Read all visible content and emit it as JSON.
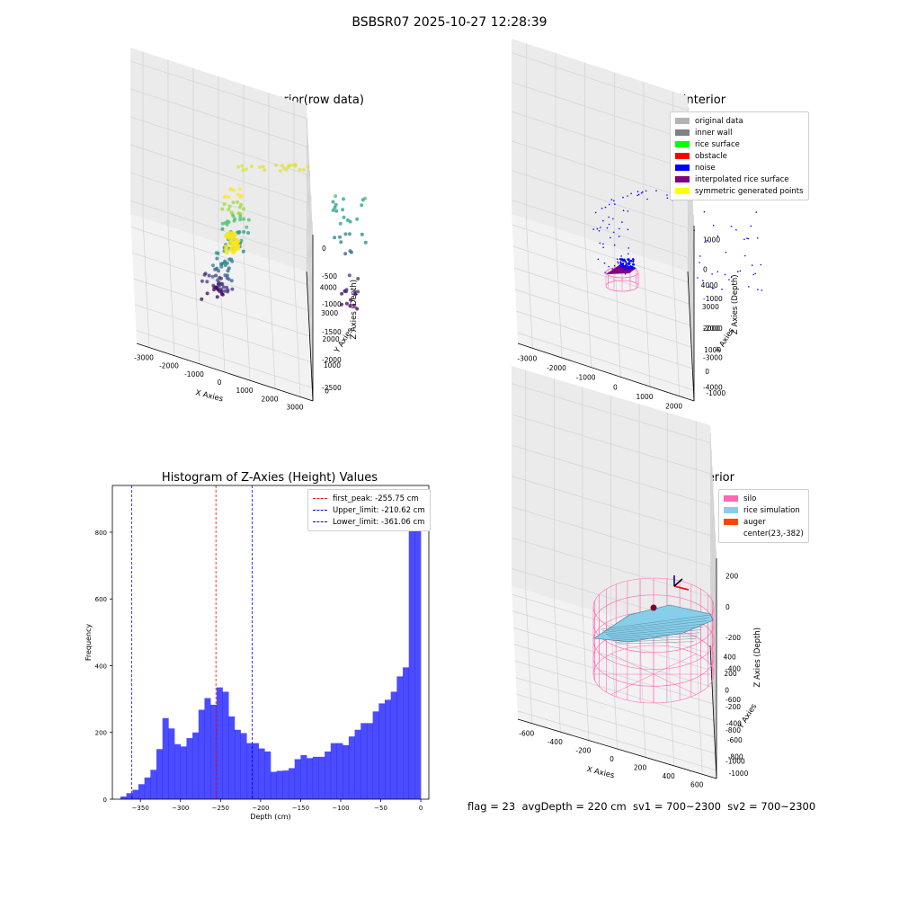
{
  "suptitle": "BSBSR07 2025-10-27 12:28:39",
  "footer_text": "flag = 23  avgDepth = 220 cm  sv1 = 700~2300  sv2 = 700~2300",
  "chart_data": [
    {
      "type": "scatter",
      "title": "3D Plot of Silo Interior(row data)",
      "xlabel": "X Axies",
      "ylabel": "Y Axies",
      "zlabel": "Z Axies (Depth)",
      "x_ticks": [
        "-3000",
        "-2000",
        "-1000",
        "0",
        "1000",
        "2000",
        "3000"
      ],
      "y_ticks": [
        "0",
        "1000",
        "2000",
        "3000",
        "4000"
      ],
      "z_ticks": [
        "0",
        "-500",
        "-1000",
        "-1500",
        "-2000",
        "-2500"
      ],
      "colormap": "viridis",
      "grid": true
    },
    {
      "type": "scatter",
      "title": "3D classify of Silo Interior",
      "xlabel": "X Axies",
      "ylabel": "Y Axies",
      "zlabel": "Z Axies (Depth)",
      "x_ticks": [
        "-3000",
        "-2000",
        "-1000",
        "0",
        "1000",
        "2000"
      ],
      "y_ticks": [
        "-1000",
        "0",
        "1000",
        "2000",
        "3000",
        "4000"
      ],
      "z_ticks": [
        "1000",
        "0",
        "-1000",
        "-2000",
        "-3000",
        "-4000"
      ],
      "legend_position": "top-right",
      "legend": [
        {
          "label": "original data",
          "color": "#b3b3b3"
        },
        {
          "label": "inner wall",
          "color": "#808080"
        },
        {
          "label": "rice surface",
          "color": "#00ff00"
        },
        {
          "label": "obstacle",
          "color": "#ff0000"
        },
        {
          "label": "noise",
          "color": "#0000ff"
        },
        {
          "label": "interpolated rice surface",
          "color": "#800080"
        },
        {
          "label": "symmetric generated points",
          "color": "#ffff00"
        }
      ],
      "grid": true
    },
    {
      "type": "bar",
      "title": "Histogram of Z-Axies (Height) Values",
      "xlabel": "Depth (cm)",
      "ylabel": "Frequency",
      "xlim": [
        -385,
        10
      ],
      "ylim": [
        0,
        940
      ],
      "x_ticks": [
        -350,
        -300,
        -250,
        -200,
        -150,
        -100,
        -50,
        0
      ],
      "y_ticks": [
        0,
        200,
        400,
        600,
        800
      ],
      "bin_width": 7.5,
      "bin_starts": [
        -375,
        -367.5,
        -360,
        -352.5,
        -345,
        -337.5,
        -330,
        -322.5,
        -315,
        -307.5,
        -300,
        -292.5,
        -285,
        -277.5,
        -270,
        -262.5,
        -255,
        -247.5,
        -240,
        -232.5,
        -225,
        -217.5,
        -210,
        -202.5,
        -195,
        -187.5,
        -180,
        -172.5,
        -165,
        -157.5,
        -150,
        -142.5,
        -135,
        -127.5,
        -120,
        -112.5,
        -105,
        -97.5,
        -90,
        -82.5,
        -75,
        -67.5,
        -60,
        -52.5,
        -45,
        -37.5,
        -30,
        -22.5,
        -15,
        -7.5
      ],
      "values": [
        8,
        18,
        28,
        45,
        65,
        88,
        150,
        243,
        212,
        165,
        158,
        183,
        200,
        268,
        303,
        283,
        335,
        322,
        248,
        208,
        198,
        168,
        168,
        152,
        143,
        82,
        85,
        86,
        93,
        120,
        132,
        123,
        127,
        127,
        143,
        168,
        168,
        162,
        188,
        208,
        228,
        228,
        263,
        287,
        298,
        322,
        368,
        395,
        903,
        905
      ],
      "color": "#0000ff",
      "lines": [
        {
          "label": "first_peak: -255.75 cm",
          "x": -255.75,
          "color": "#ff0000"
        },
        {
          "label": "Upper_limit: -210.62 cm",
          "x": -210.62,
          "color": "#0000ff"
        },
        {
          "label": "Lower_limit: -361.06 cm",
          "x": -361.06,
          "color": "#0000ff"
        }
      ],
      "legend_position": "top-right"
    },
    {
      "type": "surface",
      "title": "3D simulation of Silo Interior",
      "xlabel": "X Axies",
      "ylabel": "Y Axies",
      "zlabel": "Z Axies (Depth)",
      "x_ticks": [
        "-600",
        "-400",
        "-200",
        "0",
        "200",
        "400",
        "600"
      ],
      "y_ticks": [
        "-1000",
        "-800",
        "-600",
        "-400",
        "-200",
        "0",
        "200",
        "400"
      ],
      "z_ticks": [
        "200",
        "0",
        "-200",
        "-400",
        "-600",
        "-800",
        "-1000"
      ],
      "legend_position": "top-right",
      "legend": [
        {
          "label": "silo",
          "color": "#ff69b4"
        },
        {
          "label": "rice simulation",
          "color": "#87ceeb"
        },
        {
          "label": "auger",
          "color": "#ff4500"
        },
        {
          "label": "center(23,-382)",
          "color": ""
        }
      ],
      "grid": true
    }
  ]
}
